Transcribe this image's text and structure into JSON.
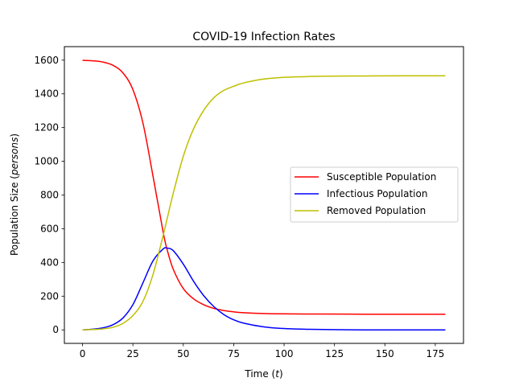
{
  "chart_data": {
    "type": "line",
    "title": "COVID-19 Infection Rates",
    "xlabel_main": "Time (",
    "xlabel_ital": "t",
    "xlabel_end": ")",
    "ylabel_main": "Population Size (",
    "ylabel_ital": "persons",
    "ylabel_end": ")",
    "xlim": [
      -9,
      189
    ],
    "ylim": [
      -80,
      1680
    ],
    "xticks": [
      0,
      25,
      50,
      75,
      100,
      125,
      150,
      175
    ],
    "yticks": [
      0,
      200,
      400,
      600,
      800,
      1000,
      1200,
      1400,
      1600
    ],
    "legend_position": "center-right",
    "x": [
      0,
      5,
      10,
      15,
      20,
      25,
      30,
      35,
      40,
      42,
      45,
      50,
      55,
      60,
      65,
      70,
      75,
      80,
      90,
      100,
      110,
      120,
      140,
      160,
      180
    ],
    "series": [
      {
        "name": "Susceptible Population",
        "color": "#ff0000",
        "values": [
          1599,
          1596,
          1589,
          1570,
          1525,
          1425,
          1225,
          910,
          580,
          475,
          360,
          245,
          185,
          150,
          128,
          115,
          107,
          102,
          97,
          95,
          94,
          94,
          93,
          93,
          93
        ]
      },
      {
        "name": "Infectious Population",
        "color": "#0000ff",
        "values": [
          0,
          4,
          12,
          30,
          70,
          150,
          280,
          410,
          480,
          485,
          470,
          390,
          290,
          205,
          140,
          92,
          60,
          40,
          18,
          8,
          4,
          2,
          0,
          0,
          0
        ]
      },
      {
        "name": "Removed Population",
        "color": "#bfbf00",
        "values": [
          0,
          2,
          6,
          15,
          38,
          85,
          170,
          330,
          560,
          660,
          810,
          1030,
          1190,
          1300,
          1375,
          1420,
          1445,
          1465,
          1488,
          1498,
          1502,
          1505,
          1506,
          1507,
          1507
        ]
      }
    ]
  }
}
